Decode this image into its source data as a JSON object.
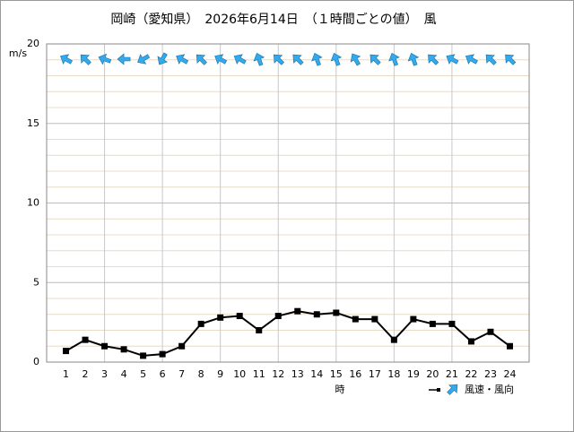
{
  "chart_data": {
    "type": "line",
    "title": "岡崎（愛知県）　2026年6月14日　（１時間ごとの値）　風",
    "y_unit": "m/s",
    "x_label": "時",
    "legend": "風速・風向",
    "x": [
      1,
      2,
      3,
      4,
      5,
      6,
      7,
      8,
      9,
      10,
      11,
      12,
      13,
      14,
      15,
      16,
      17,
      18,
      19,
      20,
      21,
      22,
      23,
      24
    ],
    "speed": [
      0.7,
      1.4,
      1.0,
      0.8,
      0.4,
      0.5,
      1.0,
      2.4,
      2.8,
      2.9,
      2.0,
      2.9,
      3.2,
      3.0,
      3.1,
      2.7,
      2.7,
      1.4,
      2.7,
      2.4,
      2.4,
      1.3,
      1.9,
      1.0
    ],
    "direction_deg": [
      300,
      315,
      290,
      270,
      240,
      210,
      300,
      315,
      300,
      300,
      340,
      315,
      315,
      340,
      340,
      330,
      315,
      340,
      340,
      315,
      300,
      300,
      315,
      315
    ],
    "xlim": [
      0,
      25
    ],
    "ylim": [
      0,
      20
    ],
    "yticks": [
      0,
      5,
      10,
      15,
      20
    ],
    "yminor": [
      1,
      2,
      3,
      4,
      6,
      7,
      8,
      9,
      11,
      12,
      13,
      14,
      16,
      17,
      18,
      19
    ],
    "xgrid": [
      3,
      6,
      9,
      12,
      15,
      18,
      21
    ],
    "line_color": "#000000",
    "arrow_color": "#33aaee",
    "grid": true
  }
}
